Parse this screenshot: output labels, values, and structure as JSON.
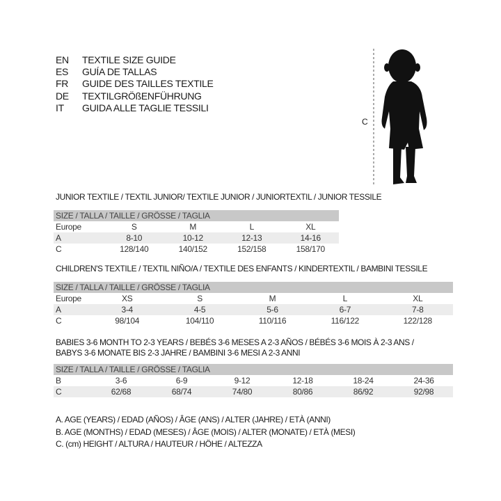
{
  "languages": [
    {
      "code": "EN",
      "title": "TEXTILE SIZE GUIDE"
    },
    {
      "code": "ES",
      "title": "GUÍA DE TALLAS"
    },
    {
      "code": "FR",
      "title": "GUIDE DES TAILLES TEXTILE"
    },
    {
      "code": "DE",
      "title": "TEXTILGRÖßENFÜHRUNG"
    },
    {
      "code": "IT",
      "title": "GUIDA ALLE TAGLIE TESSILI"
    }
  ],
  "figure": {
    "measure_label": "C"
  },
  "sections": [
    {
      "title": [
        "JUNIOR TEXTILE / TEXTIL JUNIOR/ TEXTILE JUNIOR / JUNIORTEXTIL / JUNIOR TESSILE"
      ],
      "header": "SIZE / TALLA / TAILLE / GRÖSSE / TAGLIA",
      "rows": [
        [
          "Europe",
          "S",
          "M",
          "L",
          "XL"
        ],
        [
          "A",
          "8-10",
          "10-12",
          "12-13",
          "14-16"
        ],
        [
          "C",
          "128/140",
          "140/152",
          "152/158",
          "158/170"
        ]
      ]
    },
    {
      "title": [
        "CHILDREN'S TEXTILE / TEXTIL NIÑO/A / TEXTILE DES ENFANTS / KINDERTEXTIL / BAMBINI TESSILE"
      ],
      "header": "SIZE / TALLA / TAILLE / GRÖSSE / TAGLIA",
      "rows": [
        [
          "Europe",
          "XS",
          "S",
          "M",
          "L",
          "XL"
        ],
        [
          "A",
          "3-4",
          "4-5",
          "5-6",
          "6-7",
          "7-8"
        ],
        [
          "C",
          "98/104",
          "104/110",
          "110/116",
          "116/122",
          "122/128"
        ]
      ]
    },
    {
      "title": [
        "BABIES 3-6 MONTH TO 2-3 YEARS / BEBÉS 3-6 MESES A 2-3 AÑOS / BÉBÉS 3-6 MOIS À 2-3 ANS /",
        "BABYS 3-6 MONATE BIS 2-3 JAHRE / BAMBINI 3-6 MESI A 2-3 ANNI"
      ],
      "header": "SIZE / TALLA / TAILLE / GRÖSSE / TAGLIA",
      "rows": [
        [
          "B",
          "3-6",
          "6-9",
          "9-12",
          "12-18",
          "18-24",
          "24-36"
        ],
        [
          "C",
          "62/68",
          "68/74",
          "74/80",
          "80/86",
          "86/92",
          "92/98"
        ]
      ]
    }
  ],
  "legend": [
    "A. AGE (YEARS) / EDAD (AÑOS) / ÂGE (ANS) / ALTER (JAHRE) / ETÀ (ANNI)",
    "B. AGE (MONTHS) / EDAD (MESES) / ÂGE (MOIS) / ALTER (MONATE) / ETÀ (MESI)",
    "C. (cm) HEIGHT / ALTURA / HAUTEUR / HÖHE / ALTEZZA"
  ]
}
